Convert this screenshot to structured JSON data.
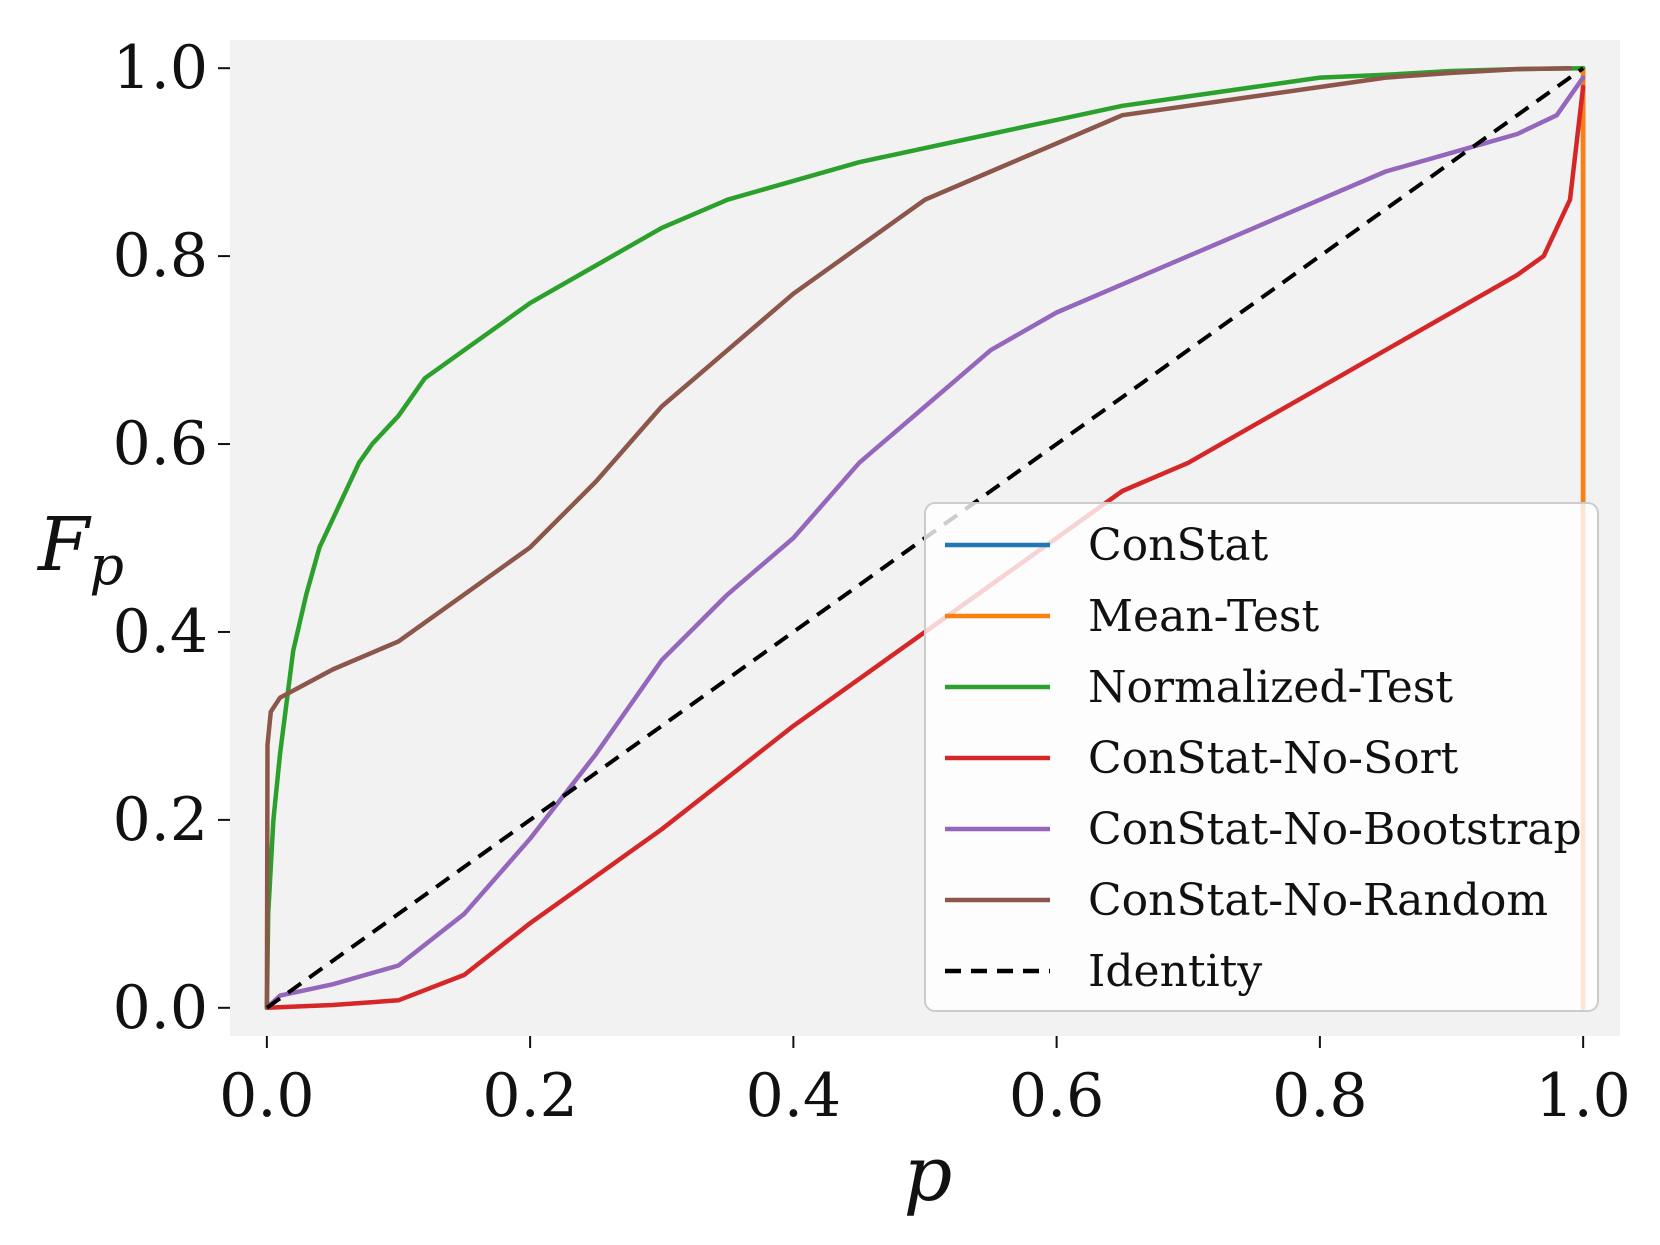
{
  "chart_data": {
    "type": "line",
    "title": "",
    "xlabel": "p",
    "ylabel": "F",
    "ylabel_sub": "p",
    "xlim": [
      -0.028,
      1.028
    ],
    "ylim": [
      -0.03,
      1.03
    ],
    "xticks": [
      0.0,
      0.2,
      0.4,
      0.6,
      0.8,
      1.0
    ],
    "yticks": [
      0.0,
      0.2,
      0.4,
      0.6,
      0.8,
      1.0
    ],
    "xtick_labels": [
      "0.0",
      "0.2",
      "0.4",
      "0.6",
      "0.8",
      "1.0"
    ],
    "ytick_labels": [
      "0.0",
      "0.2",
      "0.4",
      "0.6",
      "0.8",
      "1.0"
    ],
    "grid": false,
    "background": "#f2f2f2",
    "legend_position": "lower-right",
    "series": [
      {
        "name": "ConStat",
        "color": "#1f77b4",
        "style": "solid",
        "x": [
          1.0,
          1.0
        ],
        "y": [
          0.0,
          1.0
        ]
      },
      {
        "name": "Mean-Test",
        "color": "#ff7f0e",
        "style": "solid",
        "x": [
          1.0,
          1.0
        ],
        "y": [
          0.0,
          1.0
        ]
      },
      {
        "name": "Normalized-Test",
        "color": "#2ca02c",
        "style": "solid",
        "x": [
          0.0,
          0.001,
          0.005,
          0.01,
          0.02,
          0.03,
          0.04,
          0.05,
          0.07,
          0.08,
          0.1,
          0.12,
          0.15,
          0.18,
          0.2,
          0.25,
          0.3,
          0.35,
          0.4,
          0.45,
          0.5,
          0.55,
          0.6,
          0.65,
          0.7,
          0.75,
          0.8,
          0.85,
          0.9,
          0.95,
          1.0
        ],
        "y": [
          0.0,
          0.1,
          0.2,
          0.27,
          0.38,
          0.44,
          0.49,
          0.52,
          0.58,
          0.6,
          0.63,
          0.67,
          0.7,
          0.73,
          0.75,
          0.79,
          0.83,
          0.86,
          0.88,
          0.9,
          0.915,
          0.93,
          0.945,
          0.96,
          0.97,
          0.98,
          0.99,
          0.993,
          0.997,
          0.999,
          1.0
        ]
      },
      {
        "name": "ConStat-No-Sort",
        "color": "#d62728",
        "style": "solid",
        "x": [
          0.0,
          0.05,
          0.1,
          0.15,
          0.2,
          0.25,
          0.3,
          0.35,
          0.4,
          0.45,
          0.5,
          0.55,
          0.6,
          0.65,
          0.7,
          0.75,
          0.8,
          0.85,
          0.9,
          0.95,
          0.97,
          0.99,
          1.0
        ],
        "y": [
          0.0,
          0.003,
          0.008,
          0.035,
          0.09,
          0.14,
          0.19,
          0.245,
          0.3,
          0.35,
          0.4,
          0.45,
          0.5,
          0.55,
          0.58,
          0.62,
          0.66,
          0.7,
          0.74,
          0.78,
          0.8,
          0.86,
          0.98
        ]
      },
      {
        "name": "ConStat-No-Bootstrap",
        "color": "#9467bd",
        "style": "solid",
        "x": [
          0.0,
          0.01,
          0.05,
          0.1,
          0.15,
          0.2,
          0.25,
          0.3,
          0.35,
          0.4,
          0.45,
          0.5,
          0.55,
          0.6,
          0.65,
          0.7,
          0.75,
          0.8,
          0.85,
          0.9,
          0.95,
          0.98,
          1.0
        ],
        "y": [
          0.0,
          0.013,
          0.025,
          0.045,
          0.1,
          0.18,
          0.27,
          0.37,
          0.44,
          0.5,
          0.58,
          0.64,
          0.7,
          0.74,
          0.77,
          0.8,
          0.83,
          0.86,
          0.89,
          0.91,
          0.93,
          0.95,
          0.99
        ]
      },
      {
        "name": "ConStat-No-Random",
        "color": "#8c564b",
        "style": "solid",
        "x": [
          0.0,
          0.0005,
          0.003,
          0.01,
          0.03,
          0.05,
          0.1,
          0.15,
          0.2,
          0.25,
          0.3,
          0.35,
          0.4,
          0.45,
          0.5,
          0.55,
          0.6,
          0.65,
          0.7,
          0.75,
          0.8,
          0.85,
          0.9,
          0.95,
          0.99
        ],
        "y": [
          0.0,
          0.28,
          0.315,
          0.33,
          0.345,
          0.36,
          0.39,
          0.44,
          0.49,
          0.56,
          0.64,
          0.7,
          0.76,
          0.81,
          0.86,
          0.89,
          0.92,
          0.95,
          0.96,
          0.97,
          0.98,
          0.99,
          0.995,
          0.999,
          1.0
        ]
      },
      {
        "name": "Identity",
        "color": "#000000",
        "style": "dashed",
        "x": [
          0.0,
          1.0
        ],
        "y": [
          0.0,
          1.0
        ]
      }
    ]
  }
}
